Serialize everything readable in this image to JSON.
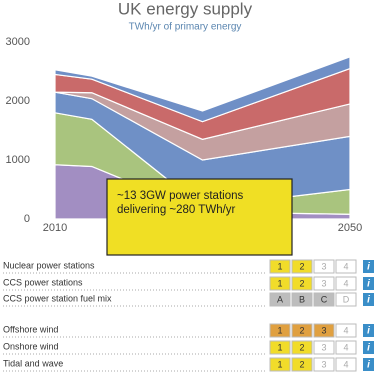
{
  "chart_data": {
    "type": "stacked-area",
    "title": "UK energy supply",
    "subtitle": "TWh/yr of primary energy",
    "x": [
      2010,
      2015,
      2030,
      2050
    ],
    "xlim": [
      2010,
      2050
    ],
    "xticks": [
      2010,
      2050
    ],
    "ylim": [
      0,
      3000
    ],
    "yticks": [
      0,
      1000,
      2000,
      3000
    ],
    "series": [
      {
        "color": "#a28ec2",
        "values": [
          920,
          890,
          120,
          80
        ]
      },
      {
        "color": "#a9c47e",
        "values": [
          880,
          800,
          80,
          420
        ]
      },
      {
        "color": "#6f90c6",
        "values": [
          350,
          350,
          800,
          900
        ]
      },
      {
        "color": "#c4a0a0",
        "values": [
          0,
          100,
          350,
          550
        ]
      },
      {
        "color": "#c96a6a",
        "values": [
          300,
          230,
          300,
          600
        ]
      },
      {
        "color": "#6f8fc6",
        "values": [
          80,
          50,
          180,
          200
        ]
      }
    ]
  },
  "popup": {
    "lines": [
      "~13 3GW power stations",
      "delivering ~280 TWh/yr"
    ]
  },
  "controls": [
    {
      "label": "Nuclear power stations",
      "options": [
        "1",
        "2",
        "3",
        "4"
      ],
      "selected": 2,
      "color": "#f1dc2a",
      "info": "i"
    },
    {
      "label": "CCS power stations",
      "options": [
        "1",
        "2",
        "3",
        "4"
      ],
      "selected": 2,
      "color": "#f1dc2a",
      "info": "i"
    },
    {
      "label": "CCS power station fuel mix",
      "options": [
        "A",
        "B",
        "C",
        "D"
      ],
      "selected": 3,
      "color": "#bdbdbd",
      "info": "i"
    },
    {
      "label": "Offshore wind",
      "options": [
        "1",
        "2",
        "3",
        "4"
      ],
      "selected": 3,
      "color": "#e0a040",
      "info": "i"
    },
    {
      "label": "Onshore wind",
      "options": [
        "1",
        "2",
        "3",
        "4"
      ],
      "selected": 2,
      "color": "#f1dc2a",
      "info": "i"
    },
    {
      "label": "Tidal and wave",
      "options": [
        "1",
        "2",
        "3",
        "4"
      ],
      "selected": 2,
      "color": "#f1dc2a",
      "info": "i"
    }
  ]
}
